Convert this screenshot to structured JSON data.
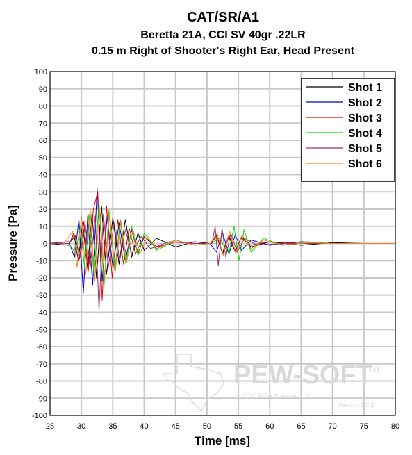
{
  "chart_data": {
    "type": "line",
    "title": "CAT/SR/A1",
    "subtitle_1": "Beretta 21A, CCI SV 40gr .22LR",
    "subtitle_2": "0.15 m Right of Shooter's Right Ear, Head Present",
    "xlabel": "Time [ms]",
    "ylabel": "Pressure [Pa]",
    "xlim": [
      25,
      80
    ],
    "ylim": [
      -100,
      100
    ],
    "x_ticks": [
      25,
      30,
      35,
      40,
      45,
      50,
      55,
      60,
      65,
      70,
      75,
      80
    ],
    "y_ticks": [
      100,
      90,
      80,
      70,
      60,
      50,
      40,
      30,
      20,
      10,
      0,
      -10,
      -20,
      -30,
      -40,
      -50,
      -60,
      -70,
      -80,
      -90,
      -100
    ],
    "grid": true,
    "legend_position": "top-right",
    "series": [
      {
        "name": "Shot 1",
        "color": "#000000",
        "points": [
          [
            25,
            0
          ],
          [
            28,
            -1
          ],
          [
            28.8,
            6
          ],
          [
            29.5,
            -10
          ],
          [
            30.2,
            12
          ],
          [
            31,
            -15
          ],
          [
            31.7,
            18
          ],
          [
            32.4,
            -20
          ],
          [
            33.2,
            22
          ],
          [
            34,
            -18
          ],
          [
            35,
            15
          ],
          [
            36,
            -12
          ],
          [
            37,
            14
          ],
          [
            38,
            -8
          ],
          [
            39,
            6
          ],
          [
            40,
            -4
          ],
          [
            42,
            3
          ],
          [
            45,
            -2
          ],
          [
            48,
            1
          ],
          [
            50.5,
            0
          ],
          [
            51.5,
            5
          ],
          [
            52.5,
            -6
          ],
          [
            53.5,
            4
          ],
          [
            54.5,
            -5
          ],
          [
            55.5,
            4
          ],
          [
            57,
            -2
          ],
          [
            60,
            1
          ],
          [
            65,
            -1
          ],
          [
            70,
            0.5
          ],
          [
            75,
            0
          ],
          [
            80,
            0
          ]
        ]
      },
      {
        "name": "Shot 2",
        "color": "#0000cc",
        "points": [
          [
            25,
            0
          ],
          [
            28,
            1
          ],
          [
            28.9,
            -8
          ],
          [
            29.6,
            14
          ],
          [
            30.3,
            -29
          ],
          [
            31,
            16
          ],
          [
            31.8,
            -24
          ],
          [
            32.5,
            32
          ],
          [
            33.3,
            -22
          ],
          [
            34.1,
            16
          ],
          [
            35,
            -14
          ],
          [
            36,
            12
          ],
          [
            37,
            -10
          ],
          [
            38,
            8
          ],
          [
            39,
            -6
          ],
          [
            40,
            4
          ],
          [
            42,
            -3
          ],
          [
            45,
            2
          ],
          [
            48,
            -1
          ],
          [
            50.5,
            0
          ],
          [
            51.5,
            -5
          ],
          [
            52.5,
            6
          ],
          [
            53.5,
            -6
          ],
          [
            54.5,
            5
          ],
          [
            55.5,
            -4
          ],
          [
            57,
            2
          ],
          [
            60,
            -1
          ],
          [
            65,
            1
          ],
          [
            70,
            0
          ],
          [
            75,
            0
          ],
          [
            80,
            0
          ]
        ]
      },
      {
        "name": "Shot 3",
        "color": "#ee0000",
        "points": [
          [
            25,
            0
          ],
          [
            28,
            0
          ],
          [
            29,
            5
          ],
          [
            29.7,
            -9
          ],
          [
            30.4,
            13
          ],
          [
            31.1,
            -16
          ],
          [
            31.9,
            20
          ],
          [
            32.6,
            30
          ],
          [
            33.3,
            -33
          ],
          [
            34,
            22
          ],
          [
            34.9,
            -20
          ],
          [
            35.8,
            14
          ],
          [
            36.7,
            -12
          ],
          [
            37.6,
            9
          ],
          [
            38.6,
            -6
          ],
          [
            40,
            4
          ],
          [
            42,
            -2
          ],
          [
            45,
            1
          ],
          [
            48,
            0
          ],
          [
            50.5,
            0
          ],
          [
            51.5,
            4
          ],
          [
            52.5,
            -5
          ],
          [
            53.5,
            5
          ],
          [
            54.5,
            -4
          ],
          [
            55.5,
            3
          ],
          [
            57,
            -1
          ],
          [
            60,
            1
          ],
          [
            65,
            0
          ],
          [
            70,
            0
          ],
          [
            75,
            0
          ],
          [
            80,
            0
          ]
        ]
      },
      {
        "name": "Shot 4",
        "color": "#00dd00",
        "points": [
          [
            25,
            0
          ],
          [
            28,
            0
          ],
          [
            29.1,
            -6
          ],
          [
            29.8,
            10
          ],
          [
            30.5,
            -14
          ],
          [
            31.2,
            17
          ],
          [
            32,
            -19
          ],
          [
            32.8,
            24
          ],
          [
            33.6,
            -25
          ],
          [
            34.4,
            19
          ],
          [
            35.3,
            -16
          ],
          [
            36.2,
            14
          ],
          [
            37.1,
            -12
          ],
          [
            38,
            10
          ],
          [
            39,
            -7
          ],
          [
            40,
            6
          ],
          [
            42,
            -4
          ],
          [
            45,
            2
          ],
          [
            48,
            -1
          ],
          [
            50.5,
            0
          ],
          [
            52,
            3
          ],
          [
            53.5,
            -6
          ],
          [
            54.3,
            10
          ],
          [
            55.1,
            -10
          ],
          [
            55.9,
            8
          ],
          [
            57,
            -5
          ],
          [
            59,
            3
          ],
          [
            62,
            -1
          ],
          [
            66,
            1
          ],
          [
            70,
            0
          ],
          [
            75,
            0
          ],
          [
            80,
            0
          ]
        ]
      },
      {
        "name": "Shot 5",
        "color": "#993366",
        "points": [
          [
            25,
            0
          ],
          [
            28,
            0
          ],
          [
            29,
            4
          ],
          [
            29.8,
            -8
          ],
          [
            30.6,
            11
          ],
          [
            31.4,
            -14
          ],
          [
            32.2,
            16
          ],
          [
            32.8,
            -39
          ],
          [
            33.5,
            17
          ],
          [
            34.3,
            -14
          ],
          [
            35.2,
            12
          ],
          [
            36.1,
            -10
          ],
          [
            37,
            8
          ],
          [
            38,
            -6
          ],
          [
            39.5,
            4
          ],
          [
            41,
            -3
          ],
          [
            44,
            1
          ],
          [
            48,
            0
          ],
          [
            50.8,
            0
          ],
          [
            51.3,
            10
          ],
          [
            51.8,
            -13
          ],
          [
            52.4,
            9
          ],
          [
            53,
            -8
          ],
          [
            53.8,
            6
          ],
          [
            54.8,
            -5
          ],
          [
            56,
            3
          ],
          [
            58,
            -1
          ],
          [
            62,
            0
          ],
          [
            70,
            0
          ],
          [
            75,
            0
          ],
          [
            80,
            0
          ]
        ]
      },
      {
        "name": "Shot 6",
        "color": "#ff7f27",
        "points": [
          [
            25,
            0
          ],
          [
            26,
            1
          ],
          [
            27,
            -1
          ],
          [
            28.6,
            7
          ],
          [
            29.3,
            -14
          ],
          [
            30,
            16
          ],
          [
            30.7,
            -18
          ],
          [
            31.4,
            20
          ],
          [
            32.1,
            -22
          ],
          [
            32.9,
            21
          ],
          [
            33.7,
            -20
          ],
          [
            34.5,
            18
          ],
          [
            35.4,
            -16
          ],
          [
            36.3,
            13
          ],
          [
            37.2,
            -11
          ],
          [
            38.2,
            8
          ],
          [
            39.3,
            -6
          ],
          [
            40.5,
            4
          ],
          [
            42,
            -3
          ],
          [
            45,
            2
          ],
          [
            48,
            -1
          ],
          [
            50.5,
            0
          ],
          [
            51.6,
            6
          ],
          [
            52.6,
            -7
          ],
          [
            53.6,
            7
          ],
          [
            54.6,
            -6
          ],
          [
            55.6,
            5
          ],
          [
            57,
            -3
          ],
          [
            59,
            2
          ],
          [
            62,
            -1
          ],
          [
            66,
            0.5
          ],
          [
            70,
            0
          ],
          [
            75,
            0
          ],
          [
            80,
            0
          ]
        ]
      }
    ],
    "watermark": {
      "brand": "PEW-SOFT",
      "trademark": "TM",
      "copyright": "© 2010 PEW Science, LLC",
      "version": "Version 1.0.2"
    }
  }
}
